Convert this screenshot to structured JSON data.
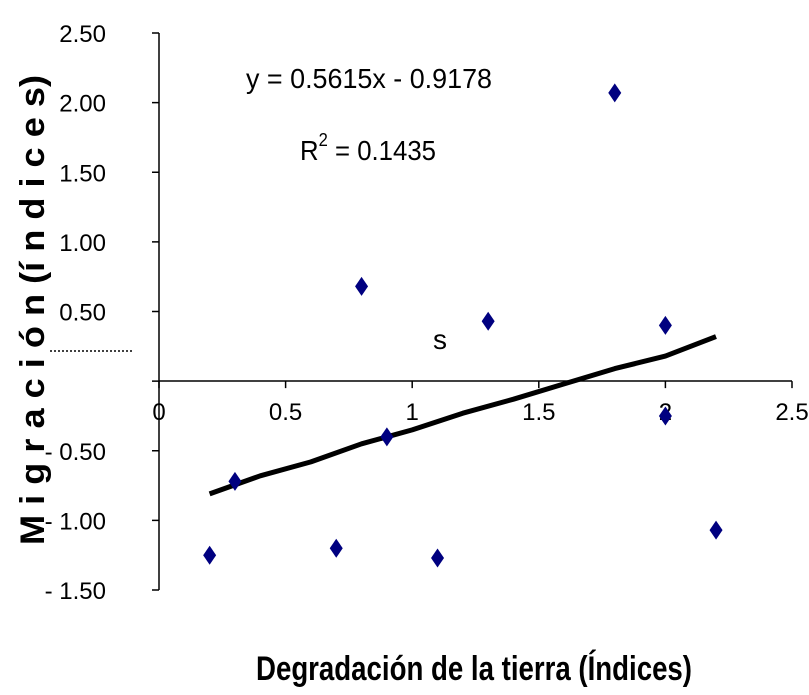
{
  "chart_data": {
    "type": "scatter",
    "title": "",
    "xlabel": "Degradación de la tierra (Índices)",
    "ylabel": "M i g r a c i ó n (í n d i c e s)",
    "xlim": [
      0,
      2.5
    ],
    "ylim": [
      -1.5,
      2.5
    ],
    "x_ticks": [
      "0",
      "0.5",
      "1",
      "1.5",
      "2",
      "2.5"
    ],
    "y_ticks": [
      "- 1.50",
      "- 1.00",
      "- 0.50",
      "",
      "0.50",
      "1.00",
      "1.50",
      "2.00",
      "2.50"
    ],
    "y_tick_values": [
      -1.5,
      -1.0,
      -0.5,
      0,
      0.5,
      1.0,
      1.5,
      2.0,
      2.5
    ],
    "grid": false,
    "legend": "none",
    "marker": "diamond",
    "colors": {
      "points": "#000080",
      "trend": "#000000",
      "axes": "#000000"
    },
    "series": [
      {
        "points": [
          {
            "x": 0.2,
            "y": -1.25
          },
          {
            "x": 0.3,
            "y": -0.72
          },
          {
            "x": 0.7,
            "y": -1.2
          },
          {
            "x": 0.8,
            "y": 0.68
          },
          {
            "x": 0.9,
            "y": -0.4
          },
          {
            "x": 1.1,
            "y": -1.27
          },
          {
            "x": 1.3,
            "y": 0.43
          },
          {
            "x": 1.8,
            "y": 2.07
          },
          {
            "x": 2.0,
            "y": 0.4
          },
          {
            "x": 2.0,
            "y": -0.25
          },
          {
            "x": 2.2,
            "y": -1.07
          }
        ]
      }
    ],
    "trendline": {
      "points": [
        {
          "x": 0.2,
          "y": -0.81
        },
        {
          "x": 0.4,
          "y": -0.68
        },
        {
          "x": 0.6,
          "y": -0.58
        },
        {
          "x": 0.8,
          "y": -0.45
        },
        {
          "x": 1.0,
          "y": -0.35
        },
        {
          "x": 1.2,
          "y": -0.23
        },
        {
          "x": 1.4,
          "y": -0.13
        },
        {
          "x": 1.6,
          "y": -0.02
        },
        {
          "x": 1.8,
          "y": 0.09
        },
        {
          "x": 2.0,
          "y": 0.18
        },
        {
          "x": 2.2,
          "y": 0.32
        }
      ]
    },
    "annotations": {
      "equation": "y = 0.5615x - 0.9178",
      "r2_base": "R",
      "r2_sup": "2",
      "r2_rest": " = 0.1435",
      "stray": "s"
    }
  }
}
